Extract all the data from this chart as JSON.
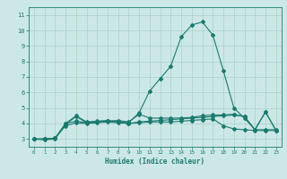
{
  "xlabel": "Humidex (Indice chaleur)",
  "xlim": [
    -0.5,
    23.5
  ],
  "ylim": [
    2.5,
    11.5
  ],
  "xticks": [
    0,
    1,
    2,
    3,
    4,
    5,
    6,
    7,
    8,
    9,
    10,
    11,
    12,
    13,
    14,
    15,
    16,
    17,
    18,
    19,
    20,
    21,
    22,
    23
  ],
  "yticks": [
    3,
    4,
    5,
    6,
    7,
    8,
    9,
    10,
    11
  ],
  "bg_color": "#cce8e6",
  "grid_color": "#aacfcc",
  "line_color": "#1a7a6e",
  "line1_x": [
    0,
    1,
    2,
    3,
    4,
    5,
    6,
    7,
    8,
    9,
    10,
    11,
    12,
    13,
    14,
    15,
    16,
    17,
    18,
    19,
    20,
    21,
    22,
    23
  ],
  "line1_y": [
    3.0,
    2.95,
    3.0,
    4.0,
    4.5,
    4.1,
    4.15,
    4.2,
    4.1,
    4.05,
    4.7,
    6.1,
    6.9,
    7.7,
    9.6,
    10.35,
    10.55,
    9.7,
    7.4,
    5.0,
    4.35,
    3.6,
    4.75,
    3.55
  ],
  "line2_x": [
    0,
    1,
    2,
    3,
    4,
    5,
    6,
    7,
    8,
    9,
    10,
    11,
    12,
    13,
    14,
    15,
    16,
    17,
    18,
    19,
    20,
    21,
    22,
    23
  ],
  "line2_y": [
    3.0,
    3.0,
    3.05,
    3.95,
    4.45,
    4.05,
    4.1,
    4.15,
    4.1,
    4.0,
    4.1,
    4.15,
    4.2,
    4.25,
    4.3,
    4.35,
    4.4,
    4.45,
    4.5,
    4.55,
    4.45,
    3.6,
    3.6,
    3.6
  ],
  "line3_x": [
    0,
    1,
    2,
    3,
    4,
    5,
    6,
    7,
    8,
    9,
    10,
    11,
    12,
    13,
    14,
    15,
    16,
    17,
    18,
    19,
    20,
    21,
    22,
    23
  ],
  "line3_y": [
    3.0,
    3.0,
    3.05,
    3.85,
    4.05,
    4.0,
    4.05,
    4.1,
    4.05,
    4.0,
    4.05,
    4.1,
    4.1,
    4.1,
    4.15,
    4.2,
    4.25,
    4.3,
    3.85,
    3.65,
    3.6,
    3.55,
    3.55,
    3.55
  ],
  "line4_x": [
    0,
    1,
    2,
    3,
    4,
    5,
    6,
    7,
    8,
    9,
    10,
    11,
    12,
    13,
    14,
    15,
    16,
    17,
    18,
    19,
    20,
    21,
    22,
    23
  ],
  "line4_y": [
    3.0,
    3.0,
    3.05,
    4.0,
    4.15,
    4.05,
    4.1,
    4.15,
    4.2,
    4.1,
    4.6,
    4.35,
    4.35,
    4.35,
    4.35,
    4.4,
    4.5,
    4.55,
    4.55,
    4.6,
    4.45,
    3.6,
    4.75,
    3.55
  ]
}
